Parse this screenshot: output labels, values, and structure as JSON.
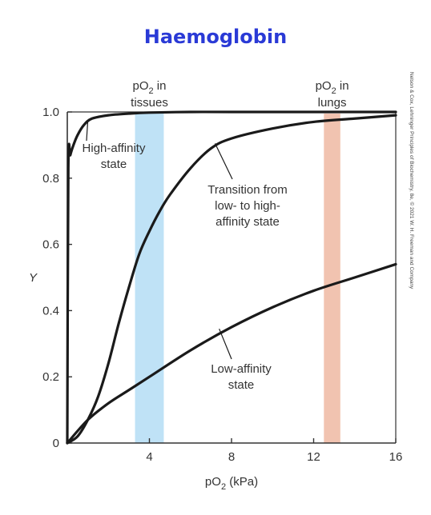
{
  "page_title": "Haemoglobin",
  "colors": {
    "title": "#2a3ad6",
    "tissues_band": "#bfe2f6",
    "lungs_band": "#f1c3b0",
    "curve": "#1a1a1a",
    "axis": "#333333"
  },
  "credit": "Nelson & Cox, Lehninger Principles of Biochemistry, 8e, © 2021 W. H. Freeman and Company",
  "chart_data": {
    "type": "line",
    "xlabel_main": "pO",
    "xlabel_sub": "2",
    "xlabel_unit": " (kPa)",
    "ylabel": "Y",
    "xlim": [
      0,
      16
    ],
    "ylim": [
      0,
      1.0
    ],
    "x_ticks": [
      {
        "value": 4,
        "label": "4"
      },
      {
        "value": 8,
        "label": "8"
      },
      {
        "value": 12,
        "label": "12"
      },
      {
        "value": 16,
        "label": "16"
      }
    ],
    "y_ticks": [
      {
        "value": 0,
        "label": "0"
      },
      {
        "value": 0.2,
        "label": "0.2"
      },
      {
        "value": 0.4,
        "label": "0.4"
      },
      {
        "value": 0.6,
        "label": "0.6"
      },
      {
        "value": 0.8,
        "label": "0.8"
      },
      {
        "value": 1.0,
        "label": "1.0"
      }
    ],
    "bands": [
      {
        "name": "tissues",
        "x_range": [
          3.3,
          4.7
        ],
        "label_main": "pO",
        "label_sub": "2",
        "label_rest": " in",
        "label_line2": "tissues"
      },
      {
        "name": "lungs",
        "x_range": [
          12.5,
          13.3
        ],
        "label_main": "pO",
        "label_sub": "2",
        "label_rest": " in",
        "label_line2": "lungs"
      }
    ],
    "series": [
      {
        "x": [
          0,
          0.05,
          0.15,
          0.3,
          0.5,
          0.8,
          1.2,
          2,
          3,
          4,
          6,
          8,
          12,
          16
        ],
        "y": [
          0,
          0.83,
          0.87,
          0.9,
          0.93,
          0.96,
          0.98,
          0.99,
          0.995,
          0.998,
          1.0,
          1.0,
          1.0,
          1.0
        ]
      },
      {
        "x": [
          0,
          0.5,
          1,
          1.5,
          2,
          2.5,
          3,
          3.5,
          4,
          4.5,
          5,
          6,
          7,
          8,
          10,
          12,
          14,
          16
        ],
        "y": [
          0,
          0.02,
          0.07,
          0.14,
          0.24,
          0.36,
          0.47,
          0.57,
          0.64,
          0.7,
          0.75,
          0.83,
          0.89,
          0.92,
          0.95,
          0.97,
          0.98,
          0.99
        ]
      },
      {
        "x": [
          0,
          1,
          2,
          3,
          4,
          6,
          8,
          10,
          12,
          14,
          16
        ],
        "y": [
          0,
          0.07,
          0.12,
          0.16,
          0.2,
          0.28,
          0.35,
          0.41,
          0.46,
          0.5,
          0.54
        ]
      }
    ],
    "annotations": [
      {
        "lines": [
          "High-affinity",
          "state"
        ],
        "target": {
          "x": 1.0,
          "y": 0.975
        }
      },
      {
        "lines": [
          "Transition from",
          "low- to high-",
          "affinity state"
        ],
        "target": {
          "x": 7.2,
          "y": 0.905
        }
      },
      {
        "lines": [
          "Low-affinity",
          "state"
        ],
        "target": {
          "x": 7.4,
          "y": 0.345
        }
      }
    ]
  }
}
